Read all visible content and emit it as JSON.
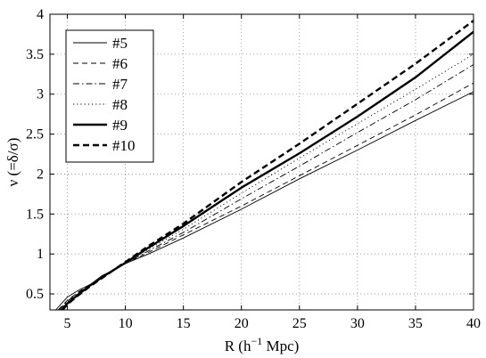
{
  "chart_data": {
    "type": "line",
    "xlabel": "R (h",
    "xlabel_sup": "−1",
    "xlabel_tail": " Mpc)",
    "ylabel": "ν (=δ/σ)",
    "xlim": [
      3.5,
      40
    ],
    "ylim": [
      0.3,
      4
    ],
    "xticks": [
      5,
      10,
      15,
      20,
      25,
      30,
      35,
      40
    ],
    "yticks": [
      0.5,
      1,
      1.5,
      2,
      2.5,
      3,
      3.5,
      4
    ],
    "xtick_labels": [
      "5",
      "10",
      "15",
      "20",
      "25",
      "30",
      "35",
      "40"
    ],
    "ytick_labels": [
      "0.5",
      "1",
      "1.5",
      "2",
      "2.5",
      "3",
      "3.5",
      "4"
    ],
    "grid": true,
    "legend_position": "top-left",
    "series": [
      {
        "name": "#5",
        "style": "solid-thin",
        "x": [
          4,
          5,
          6,
          7,
          8,
          9,
          10,
          12,
          15,
          20,
          25,
          30,
          35,
          40
        ],
        "y": [
          0.3,
          0.46,
          0.55,
          0.62,
          0.73,
          0.8,
          0.88,
          1.0,
          1.2,
          1.56,
          1.94,
          2.3,
          2.67,
          3.03
        ]
      },
      {
        "name": "#6",
        "style": "dashed-thin",
        "x": [
          4.2,
          5,
          6,
          7,
          8,
          9,
          10,
          12,
          15,
          20,
          25,
          30,
          35,
          40
        ],
        "y": [
          0.3,
          0.42,
          0.53,
          0.62,
          0.72,
          0.8,
          0.88,
          1.02,
          1.24,
          1.6,
          1.98,
          2.36,
          2.74,
          3.14
        ]
      },
      {
        "name": "#7",
        "style": "dashdot-thin",
        "x": [
          4.3,
          5,
          6,
          7,
          8,
          9,
          10,
          12,
          15,
          20,
          25,
          30,
          35,
          40
        ],
        "y": [
          0.3,
          0.41,
          0.52,
          0.62,
          0.71,
          0.8,
          0.88,
          1.04,
          1.27,
          1.69,
          2.1,
          2.52,
          2.93,
          3.37
        ]
      },
      {
        "name": "#8",
        "style": "dotted-thin",
        "x": [
          4.4,
          5,
          6,
          7,
          8,
          9,
          10,
          12,
          15,
          20,
          25,
          30,
          35,
          40
        ],
        "y": [
          0.3,
          0.4,
          0.51,
          0.61,
          0.71,
          0.8,
          0.89,
          1.06,
          1.31,
          1.76,
          2.2,
          2.63,
          3.06,
          3.5
        ]
      },
      {
        "name": "#9",
        "style": "solid-thick",
        "x": [
          4.5,
          5,
          6,
          7,
          8,
          9,
          10,
          12,
          15,
          20,
          25,
          30,
          35,
          40
        ],
        "y": [
          0.3,
          0.38,
          0.5,
          0.61,
          0.71,
          0.8,
          0.89,
          1.08,
          1.35,
          1.83,
          2.26,
          2.72,
          3.21,
          3.78
        ]
      },
      {
        "name": "#10",
        "style": "dashed-thick",
        "x": [
          4.6,
          5,
          6,
          7,
          8,
          9,
          10,
          12,
          15,
          20,
          25,
          30,
          35,
          40
        ],
        "y": [
          0.3,
          0.37,
          0.49,
          0.6,
          0.7,
          0.8,
          0.9,
          1.1,
          1.38,
          1.9,
          2.38,
          2.88,
          3.38,
          3.92
        ]
      }
    ]
  }
}
